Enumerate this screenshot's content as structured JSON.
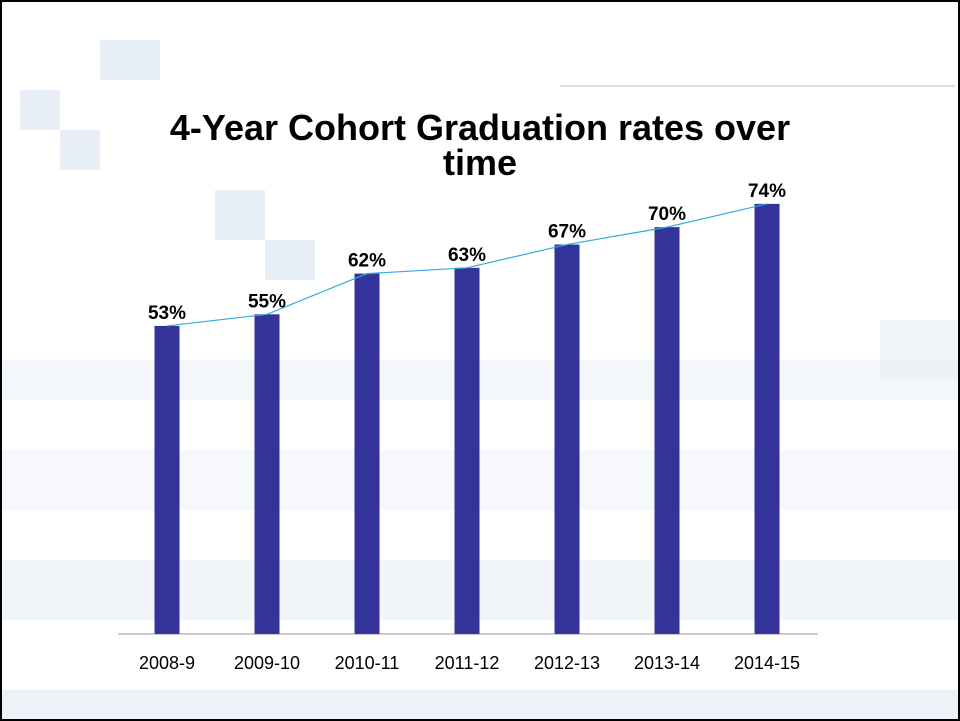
{
  "chart_data": {
    "type": "bar",
    "title": "4-Year Cohort Graduation rates over time",
    "categories": [
      "2008-9",
      "2009-10",
      "2010-11",
      "2011-12",
      "2012-13",
      "2013-14",
      "2014-15"
    ],
    "values": [
      53,
      55,
      62,
      63,
      67,
      70,
      74
    ],
    "value_labels": [
      "53%",
      "55%",
      "62%",
      "63%",
      "67%",
      "70%",
      "74%"
    ],
    "color": "#333399",
    "line_color": "#33aadd",
    "ylim": [
      0,
      80
    ]
  }
}
